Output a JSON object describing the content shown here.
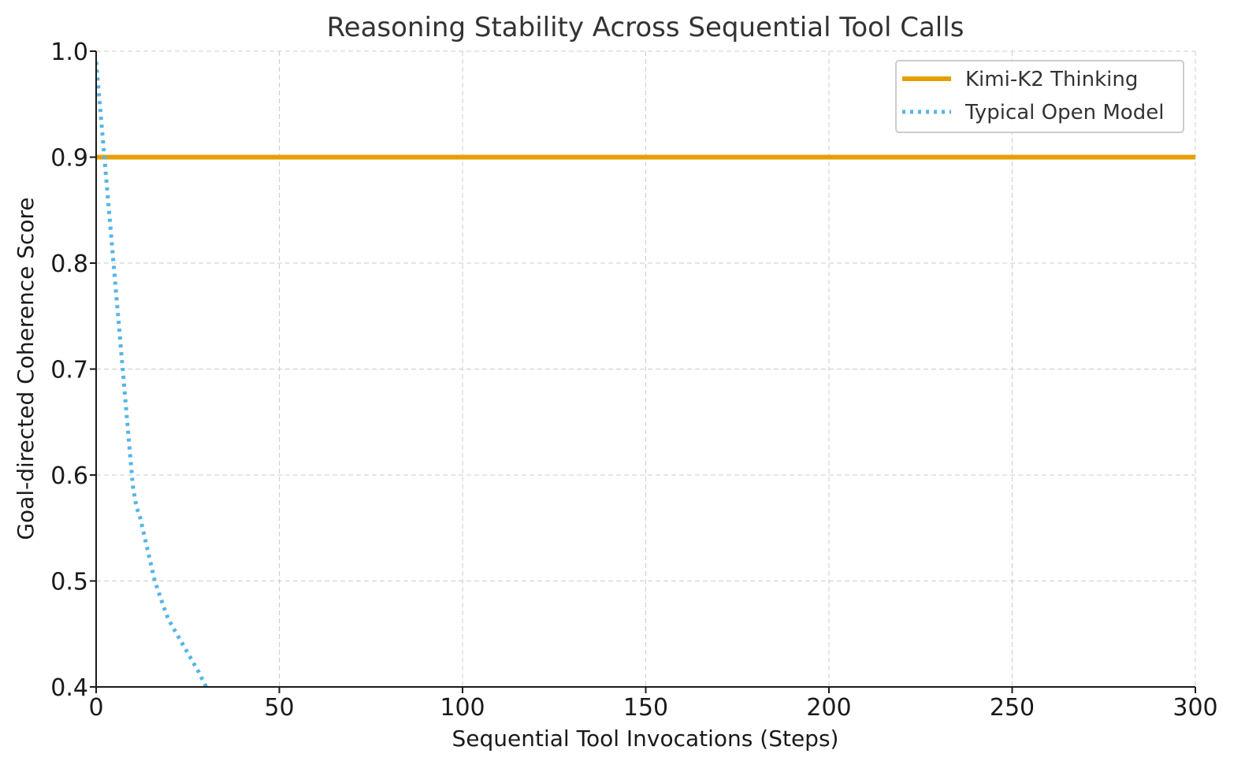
{
  "chart_data": {
    "type": "line",
    "title": "Reasoning Stability Across Sequential Tool Calls",
    "xlabel": "Sequential Tool Invocations (Steps)",
    "ylabel": "Goal-directed Coherence Score",
    "xlim": [
      0,
      300
    ],
    "ylim": [
      0.4,
      1.0
    ],
    "x_ticks": [
      "0",
      "50",
      "100",
      "150",
      "200",
      "250",
      "300"
    ],
    "y_ticks": [
      "0.4",
      "0.5",
      "0.6",
      "0.7",
      "0.8",
      "0.9",
      "1.0"
    ],
    "grid": true,
    "legend_position": "top-right",
    "series": [
      {
        "name": "Kimi-K2 Thinking",
        "color": "#E69F00",
        "style": "solid",
        "x": [
          0,
          300
        ],
        "y": [
          0.9,
          0.9
        ]
      },
      {
        "name": "Typical Open Model",
        "color": "#56B4E9",
        "style": "dotted",
        "x": [
          0,
          1,
          2,
          3,
          4,
          5,
          6,
          7,
          8,
          9,
          10,
          11,
          12,
          13,
          14,
          15,
          16,
          17,
          18,
          19,
          20,
          21,
          22,
          23,
          24,
          25,
          26,
          27,
          28,
          29,
          30
        ],
        "y": [
          0.99,
          0.95,
          0.91,
          0.87,
          0.83,
          0.79,
          0.75,
          0.71,
          0.67,
          0.63,
          0.59,
          0.57,
          0.56,
          0.545,
          0.53,
          0.515,
          0.5,
          0.49,
          0.48,
          0.47,
          0.462,
          0.456,
          0.45,
          0.444,
          0.438,
          0.432,
          0.426,
          0.42,
          0.414,
          0.407,
          0.4
        ]
      }
    ]
  }
}
